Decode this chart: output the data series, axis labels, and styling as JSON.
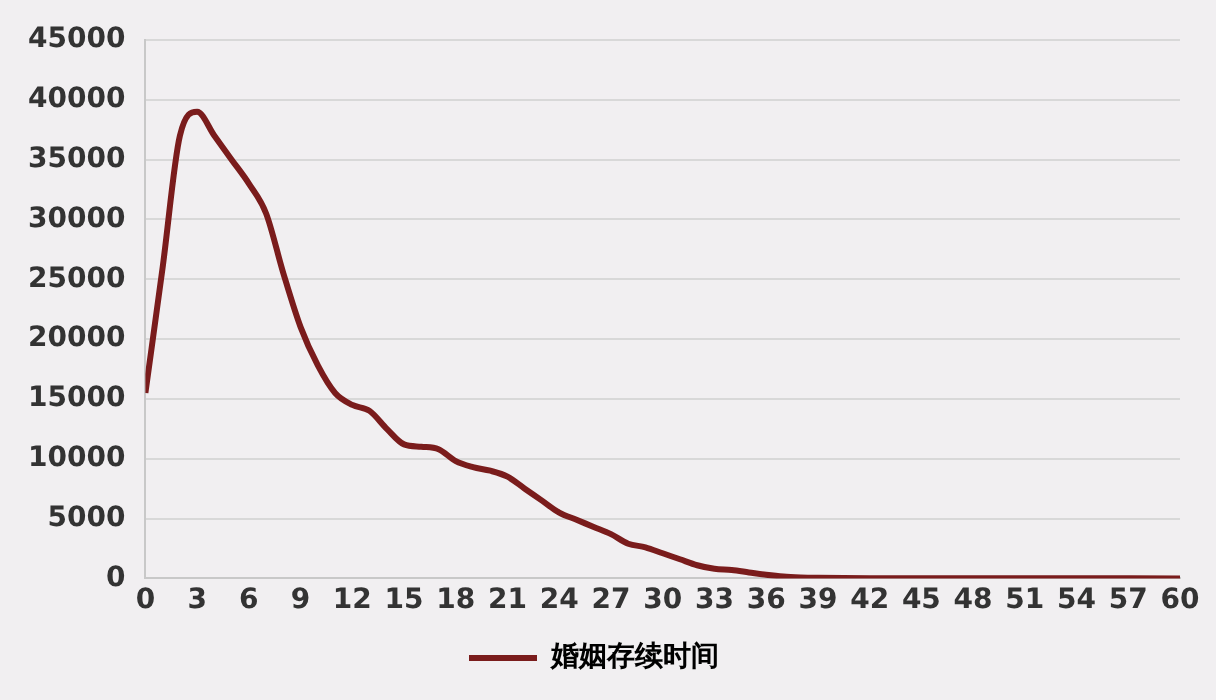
{
  "chart_data": {
    "type": "line",
    "x": [
      0,
      1,
      2,
      3,
      4,
      5,
      6,
      7,
      8,
      9,
      10,
      11,
      12,
      13,
      14,
      15,
      16,
      17,
      18,
      19,
      20,
      21,
      22,
      23,
      24,
      25,
      26,
      27,
      28,
      29,
      30,
      31,
      32,
      33,
      34,
      35,
      36,
      37,
      38,
      39,
      42,
      48,
      54,
      60
    ],
    "series": [
      {
        "name": "婚姻存续时间",
        "color": "#7a1c1c",
        "values": [
          15500,
          26000,
          37000,
          39000,
          37000,
          35000,
          33000,
          30500,
          25500,
          21000,
          17800,
          15500,
          14500,
          14000,
          12500,
          11200,
          11000,
          10800,
          9800,
          9300,
          9000,
          8500,
          7500,
          6500,
          5500,
          4900,
          4300,
          3700,
          2900,
          2600,
          2100,
          1600,
          1100,
          800,
          700,
          500,
          300,
          150,
          80,
          50,
          20,
          10,
          10,
          0
        ]
      }
    ],
    "xlim": [
      0,
      60
    ],
    "xticks": [
      0,
      3,
      6,
      9,
      12,
      15,
      18,
      21,
      24,
      27,
      30,
      33,
      36,
      39,
      42,
      45,
      48,
      51,
      54,
      57,
      60
    ],
    "ylim": [
      0,
      45000
    ],
    "yticks": [
      0,
      5000,
      10000,
      15000,
      20000,
      25000,
      30000,
      35000,
      40000,
      45000
    ],
    "grid": "y",
    "legend": "bottom",
    "marker": "none",
    "line_style": "solid"
  }
}
